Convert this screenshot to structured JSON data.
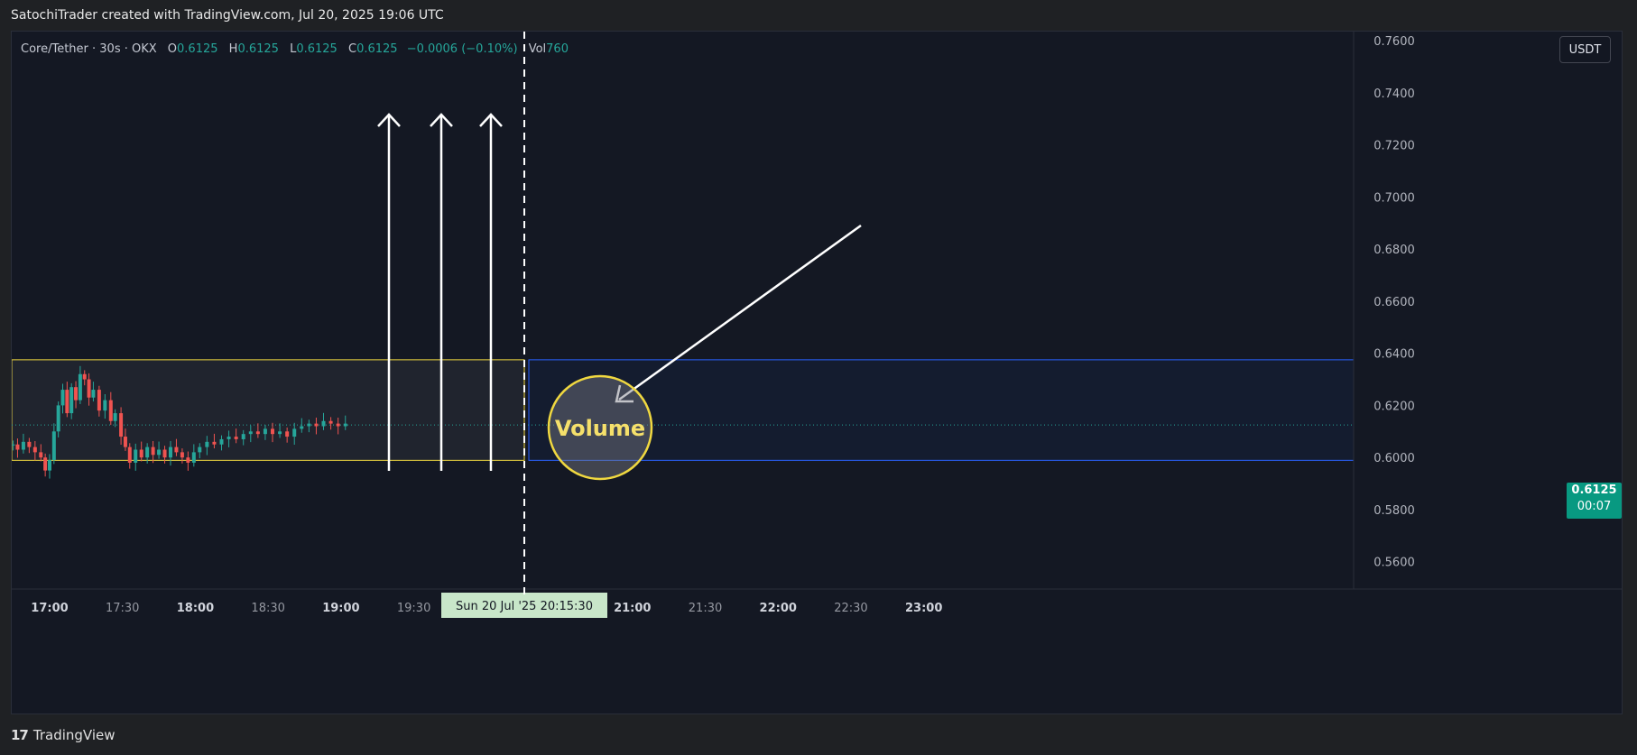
{
  "header": {
    "credit": "SatochiTrader created with TradingView.com, Jul 20, 2025 19:06 UTC"
  },
  "legend": {
    "symbol": "Core/Tether · 30s · OKX",
    "o_label": "O",
    "o_value": "0.6125",
    "h_label": "H",
    "h_value": "0.6125",
    "l_label": "L",
    "l_value": "0.6125",
    "c_label": "C",
    "c_value": "0.6125",
    "change": "−0.0006 (−0.10%)",
    "vol_label": "Vol",
    "vol_value": "760"
  },
  "currency_button": "USDT",
  "last_price": {
    "price": "0.6125",
    "countdown": "00:07"
  },
  "crosshair_time_label": "Sun 20 Jul '25   20:15:30",
  "annotation": {
    "text": "Volume"
  },
  "footer": {
    "logo": "17",
    "brand": "TradingView"
  },
  "colors": {
    "background": "#141823",
    "up": "#26a69a",
    "down": "#ef5350",
    "box_yellow": "#f0d840",
    "box_blue": "#2962ff",
    "arrow": "#ffffff"
  },
  "chart_data": {
    "type": "candlestick",
    "y_ticks": [
      "0.7600",
      "0.7400",
      "0.7200",
      "0.7000",
      "0.6800",
      "0.6600",
      "0.6400",
      "0.6200",
      "0.6000",
      "0.5800",
      "0.5600"
    ],
    "y_tick_values": [
      0.76,
      0.74,
      0.72,
      0.7,
      0.68,
      0.66,
      0.64,
      0.62,
      0.6,
      0.58,
      0.56
    ],
    "ylim": [
      0.5495,
      0.7635
    ],
    "x_ticks": [
      {
        "label": "17:00",
        "hours": 17.0,
        "bold": true
      },
      {
        "label": "17:30",
        "hours": 17.5,
        "bold": false
      },
      {
        "label": "18:00",
        "hours": 18.0,
        "bold": true
      },
      {
        "label": "18:30",
        "hours": 18.5,
        "bold": false
      },
      {
        "label": "19:00",
        "hours": 19.0,
        "bold": true
      },
      {
        "label": "19:30",
        "hours": 19.5,
        "bold": false
      },
      {
        "label": "21:00",
        "hours": 21.0,
        "bold": true
      },
      {
        "label": "21:30",
        "hours": 21.5,
        "bold": false
      },
      {
        "label": "22:00",
        "hours": 22.0,
        "bold": true
      },
      {
        "label": "22:30",
        "hours": 22.5,
        "bold": false
      },
      {
        "label": "23:00",
        "hours": 23.0,
        "bold": true
      }
    ],
    "xlim_hours": [
      16.74,
      25.95
    ],
    "last_price": 0.6125,
    "crosshair_time_hours": 20.258,
    "series": [
      {
        "t": 16.75,
        "p": 0.605
      },
      {
        "t": 16.78,
        "p": 0.603
      },
      {
        "t": 16.82,
        "p": 0.606
      },
      {
        "t": 16.86,
        "p": 0.604
      },
      {
        "t": 16.9,
        "p": 0.602
      },
      {
        "t": 16.94,
        "p": 0.6
      },
      {
        "t": 16.97,
        "p": 0.595
      },
      {
        "t": 17.0,
        "p": 0.599
      },
      {
        "t": 17.03,
        "p": 0.61
      },
      {
        "t": 17.06,
        "p": 0.62
      },
      {
        "t": 17.09,
        "p": 0.626
      },
      {
        "t": 17.12,
        "p": 0.617
      },
      {
        "t": 17.15,
        "p": 0.627
      },
      {
        "t": 17.18,
        "p": 0.622
      },
      {
        "t": 17.21,
        "p": 0.632
      },
      {
        "t": 17.24,
        "p": 0.63
      },
      {
        "t": 17.27,
        "p": 0.623
      },
      {
        "t": 17.3,
        "p": 0.626
      },
      {
        "t": 17.34,
        "p": 0.618
      },
      {
        "t": 17.38,
        "p": 0.622
      },
      {
        "t": 17.42,
        "p": 0.614
      },
      {
        "t": 17.45,
        "p": 0.617
      },
      {
        "t": 17.49,
        "p": 0.608
      },
      {
        "t": 17.52,
        "p": 0.604
      },
      {
        "t": 17.55,
        "p": 0.598
      },
      {
        "t": 17.59,
        "p": 0.603
      },
      {
        "t": 17.63,
        "p": 0.6
      },
      {
        "t": 17.67,
        "p": 0.604
      },
      {
        "t": 17.71,
        "p": 0.601
      },
      {
        "t": 17.75,
        "p": 0.603
      },
      {
        "t": 17.79,
        "p": 0.6
      },
      {
        "t": 17.83,
        "p": 0.604
      },
      {
        "t": 17.87,
        "p": 0.602
      },
      {
        "t": 17.91,
        "p": 0.6
      },
      {
        "t": 17.95,
        "p": 0.598
      },
      {
        "t": 17.99,
        "p": 0.602
      },
      {
        "t": 18.03,
        "p": 0.604
      },
      {
        "t": 18.08,
        "p": 0.606
      },
      {
        "t": 18.13,
        "p": 0.605
      },
      {
        "t": 18.18,
        "p": 0.607
      },
      {
        "t": 18.23,
        "p": 0.608
      },
      {
        "t": 18.28,
        "p": 0.607
      },
      {
        "t": 18.33,
        "p": 0.609
      },
      {
        "t": 18.38,
        "p": 0.61
      },
      {
        "t": 18.43,
        "p": 0.609
      },
      {
        "t": 18.48,
        "p": 0.611
      },
      {
        "t": 18.53,
        "p": 0.609
      },
      {
        "t": 18.58,
        "p": 0.61
      },
      {
        "t": 18.63,
        "p": 0.608
      },
      {
        "t": 18.68,
        "p": 0.611
      },
      {
        "t": 18.73,
        "p": 0.612
      },
      {
        "t": 18.78,
        "p": 0.613
      },
      {
        "t": 18.83,
        "p": 0.612
      },
      {
        "t": 18.88,
        "p": 0.614
      },
      {
        "t": 18.93,
        "p": 0.613
      },
      {
        "t": 18.98,
        "p": 0.612
      },
      {
        "t": 19.03,
        "p": 0.613
      }
    ]
  }
}
